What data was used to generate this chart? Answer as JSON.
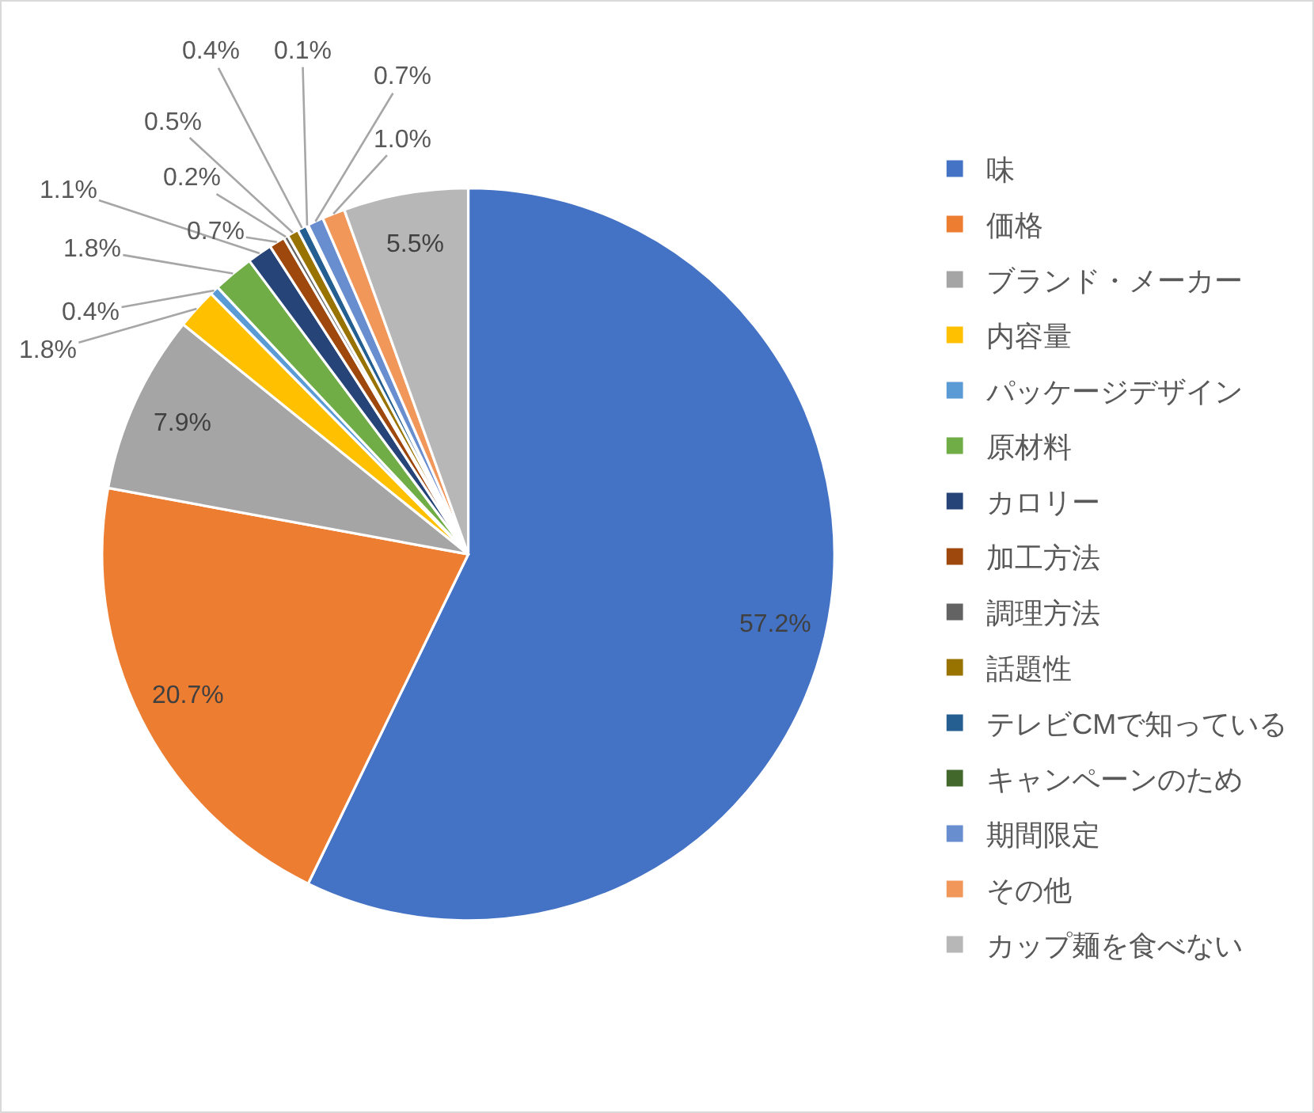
{
  "chart_data": {
    "type": "pie",
    "categories": [
      "味",
      "価格",
      "ブランド・メーカー",
      "内容量",
      "パッケージデザイン",
      "原材料",
      "カロリー",
      "加工方法",
      "調理方法",
      "話題性",
      "テレビCMで知っている",
      "キャンペーンのため",
      "期間限定",
      "その他",
      "カップ麺を食べない"
    ],
    "values": [
      57.2,
      20.7,
      7.9,
      1.8,
      0.4,
      1.8,
      1.1,
      0.7,
      0.2,
      0.5,
      0.4,
      0.1,
      0.7,
      1.0,
      5.5
    ],
    "value_labels": [
      "57.2%",
      "20.7%",
      "7.9%",
      "1.8%",
      "0.4%",
      "1.8%",
      "1.1%",
      "0.7%",
      "0.2%",
      "0.5%",
      "0.4%",
      "0.1%",
      "0.7%",
      "1.0%",
      "5.5%"
    ],
    "colors": [
      "#4472c4",
      "#ed7d31",
      "#a5a5a5",
      "#ffc000",
      "#5b9bd5",
      "#70ad47",
      "#264478",
      "#9e480e",
      "#636363",
      "#997300",
      "#255e91",
      "#43682b",
      "#698ed0",
      "#f1975a",
      "#b7b7b7"
    ],
    "legend": "right"
  }
}
